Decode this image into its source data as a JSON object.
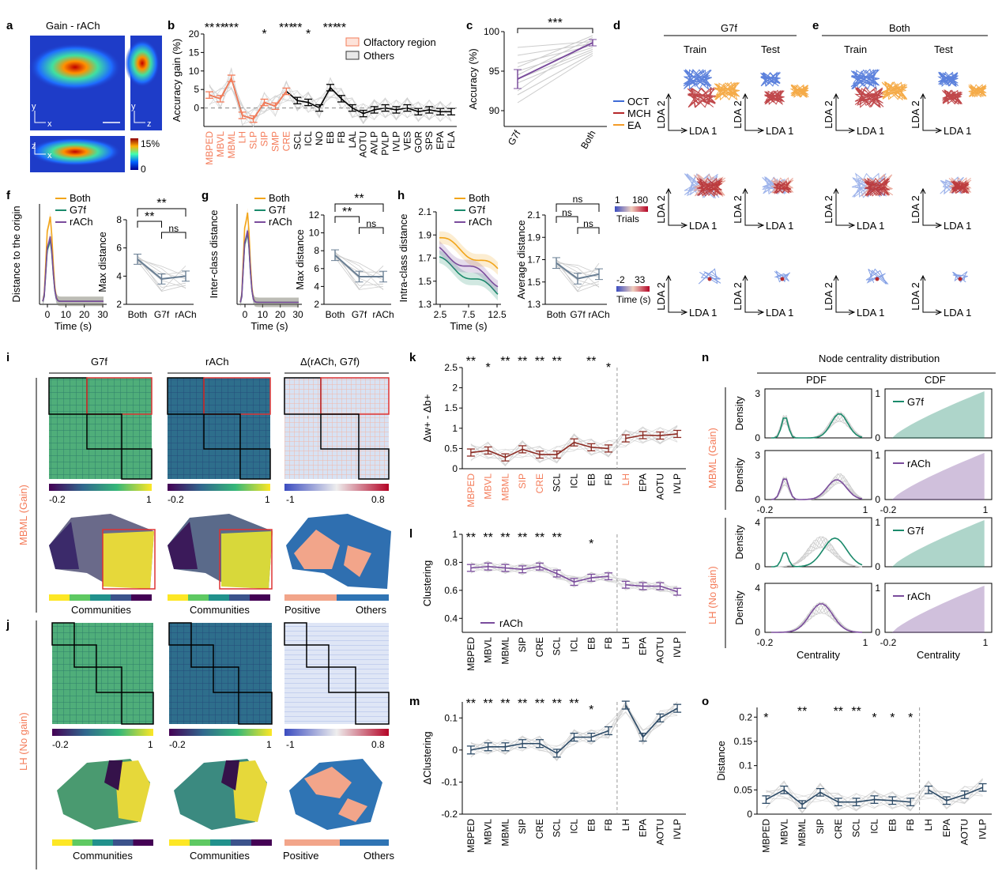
{
  "colors": {
    "orange": "#f47c5a",
    "black": "#000000",
    "green": "#1b8a6b",
    "purple": "#7a4c9c",
    "yellow": "#f2a51a",
    "brown": "#8b2a22",
    "navy": "#2c4a66",
    "oct": "#3f6bd6",
    "mch": "#b5282b",
    "ea": "#f39c28"
  },
  "panels": {
    "a": "a",
    "b": "b",
    "c": "c",
    "d": "d",
    "e": "e",
    "f": "f",
    "g": "g",
    "h": "h",
    "i": "i",
    "j": "j",
    "k": "k",
    "l": "l",
    "m": "m",
    "n": "n",
    "o": "o"
  },
  "panel_a": {
    "title": "Gain - rACh",
    "ax1_y": "y",
    "ax1_x": "x",
    "ax2_y": "y",
    "ax2_x": "z",
    "ax3_y": "z",
    "ax3_x": "x",
    "cbar_max": "15%",
    "cbar_min": "0"
  },
  "panel_d": {
    "title": "G7f",
    "col1": "Train",
    "col2": "Test",
    "xl": "LDA 1",
    "yl": "LDA 2",
    "legend": [
      "OCT",
      "MCH",
      "EA"
    ],
    "trials_min": "1",
    "trials_max": "180",
    "trials_label": "Trials",
    "time_min": "-2",
    "time_max": "33",
    "time_label": "Time (s)"
  },
  "panel_e": {
    "title": "Both",
    "col1": "Train",
    "col2": "Test"
  },
  "panel_i": {
    "cols": [
      "G7f",
      "rACh",
      "Δ(rACh, G7f)"
    ],
    "side_label": "MBML (Gain)",
    "cb1": [
      "-0.2",
      "1"
    ],
    "cb3": [
      "-1",
      "0.8"
    ],
    "communities": "Communities",
    "positive": "Positive",
    "others": "Others"
  },
  "panel_j": {
    "side_label": "LH (No gain)"
  },
  "panel_n": {
    "title": "Node centrality distribution",
    "pdf": "PDF",
    "cdf": "CDF",
    "density": "Density",
    "centrality": "Centrality",
    "leg1": "G7f",
    "leg2": "rACh",
    "side1": "MBML (Gain)",
    "side2": "LH (No gain)",
    "x_ticks": [
      "-0.2",
      "1"
    ]
  },
  "chart_data": [
    {
      "id": "b",
      "type": "line",
      "ylabel": "Accuracy gain (%)",
      "ylim": [
        -5,
        20
      ],
      "yticks": [
        0,
        5,
        10,
        15,
        20
      ],
      "categories": [
        "MBPED",
        "MBVL",
        "MBML",
        "LH",
        "SLP",
        "SIP",
        "SMP",
        "CRE",
        "SCL",
        "ICL",
        "NO",
        "EB",
        "FB",
        "LAL",
        "AOTU",
        "AVLP",
        "PVLP",
        "IVLP",
        "VES",
        "GOR",
        "SPS",
        "EPA",
        "FLA"
      ],
      "olfactory": [
        true,
        true,
        true,
        true,
        true,
        true,
        true,
        true,
        false,
        false,
        false,
        false,
        false,
        false,
        false,
        false,
        false,
        false,
        false,
        false,
        false,
        false,
        false
      ],
      "values": [
        3.5,
        2.5,
        8,
        -2,
        -3,
        1.5,
        0.5,
        4.5,
        2,
        1.5,
        0,
        5.5,
        2.5,
        0,
        -1.5,
        -0.5,
        0,
        -0.5,
        0,
        -1,
        -0.5,
        -1,
        -1
      ],
      "sig": [
        "**",
        "**",
        "***",
        "",
        "",
        "*",
        "",
        "***",
        "**",
        "*",
        "",
        "***",
        "**",
        "",
        "",
        "",
        "",
        "",
        "",
        "",
        "",
        "",
        ""
      ],
      "legend": [
        "Olfactory region",
        "Others"
      ]
    },
    {
      "id": "c",
      "type": "line",
      "ylabel": "Accuracy (%)",
      "ylim": [
        88,
        100
      ],
      "yticks": [
        90,
        95,
        100
      ],
      "categories": [
        "G7f",
        "Both"
      ],
      "values": [
        94,
        98.6
      ],
      "sig": "***"
    },
    {
      "id": "f",
      "type": "line",
      "ylabel": "Distance to the origin",
      "xlabel": "Time (s)",
      "xticks": [
        0,
        10,
        20,
        30
      ],
      "series": [
        "Both",
        "G7f",
        "rACh"
      ],
      "max_ylabel": "Max distance",
      "max_ylim": [
        2,
        8
      ],
      "max_yticks": [
        2,
        4,
        6,
        8
      ],
      "max_categories": [
        "Both",
        "G7f",
        "rACh"
      ],
      "max_values": [
        5.2,
        3.8,
        4.0
      ],
      "max_sig": [
        "**",
        "**",
        "ns"
      ]
    },
    {
      "id": "g",
      "type": "line",
      "ylabel": "Inter-class distance",
      "xlabel": "Time (s)",
      "xticks": [
        0,
        10,
        20,
        30
      ],
      "series": [
        "Both",
        "G7f",
        "rACh"
      ],
      "max_ylabel": "Max distance",
      "max_ylim": [
        2,
        12
      ],
      "max_yticks": [
        2,
        4,
        6,
        8,
        10,
        12
      ],
      "max_categories": [
        "Both",
        "G7f",
        "rACh"
      ],
      "max_values": [
        7.5,
        5.1,
        5.1
      ],
      "max_sig": [
        "**",
        "**",
        "ns"
      ]
    },
    {
      "id": "h",
      "type": "line",
      "ylabel": "Intra-class distance",
      "xlabel": "Time (s)",
      "xticks": [
        2.5,
        7.5,
        12.5
      ],
      "yticks": [
        1.3,
        1.5,
        1.7,
        1.9,
        2.1
      ],
      "series": [
        "Both",
        "G7f",
        "rACh"
      ],
      "avg_ylabel": "Average distance",
      "avg_yticks": [
        1.3,
        1.5,
        1.7,
        1.9,
        2.1
      ],
      "avg_categories": [
        "Both",
        "G7f",
        "rACh"
      ],
      "avg_values": [
        1.67,
        1.53,
        1.57
      ],
      "avg_sig": [
        "ns",
        "ns",
        "ns"
      ]
    },
    {
      "id": "k",
      "type": "line",
      "ylabel": "Δw+ - Δb+",
      "ylim": [
        0,
        2.5
      ],
      "yticks": [
        0,
        0.5,
        1,
        1.5,
        2,
        2.5
      ],
      "categories": [
        "MBPED",
        "MBVL",
        "MBML",
        "SIP",
        "CRE",
        "SCL",
        "ICL",
        "EB",
        "FB",
        "LH",
        "EPA",
        "AOTU",
        "IVLP"
      ],
      "olfactory": [
        true,
        true,
        true,
        true,
        true,
        false,
        false,
        false,
        false,
        true,
        false,
        false,
        false
      ],
      "values": [
        0.4,
        0.45,
        0.28,
        0.48,
        0.35,
        0.35,
        0.65,
        0.53,
        0.5,
        0.75,
        0.83,
        0.82,
        0.86
      ],
      "sig": [
        "**",
        "*",
        "**",
        "**",
        "**",
        "**",
        "",
        "**",
        "*",
        "",
        "",
        "",
        ""
      ]
    },
    {
      "id": "l",
      "type": "line",
      "ylabel": "Clustering",
      "ylim": [
        0.3,
        1
      ],
      "yticks": [
        0.4,
        0.6,
        0.8,
        1
      ],
      "legend": "rACh",
      "categories": [
        "MBPED",
        "MBVL",
        "MBML",
        "SIP",
        "CRE",
        "SCL",
        "ICL",
        "EB",
        "FB",
        "LH",
        "EPA",
        "AOTU",
        "IVLP"
      ],
      "values": [
        0.76,
        0.77,
        0.76,
        0.75,
        0.77,
        0.72,
        0.66,
        0.69,
        0.7,
        0.64,
        0.63,
        0.63,
        0.59
      ],
      "sig": [
        "**",
        "**",
        "**",
        "**",
        "**",
        "**",
        "",
        "*",
        "",
        "",
        "",
        "",
        ""
      ]
    },
    {
      "id": "m",
      "type": "line",
      "ylabel": "ΔClustering",
      "ylim": [
        -0.2,
        0.15
      ],
      "yticks": [
        -0.2,
        -0.1,
        0,
        0.1
      ],
      "categories": [
        "MBPED",
        "MBVL",
        "MBML",
        "SIP",
        "CRE",
        "SCL",
        "ICL",
        "EB",
        "FB",
        "LH",
        "EPA",
        "AOTU",
        "IVLP"
      ],
      "values": [
        0.0,
        0.01,
        0.01,
        0.02,
        0.02,
        -0.01,
        0.04,
        0.04,
        0.06,
        0.14,
        0.04,
        0.1,
        0.13
      ],
      "sig": [
        "**",
        "**",
        "**",
        "**",
        "**",
        "**",
        "**",
        "*",
        "",
        "",
        "",
        "",
        ""
      ]
    },
    {
      "id": "o",
      "type": "line",
      "ylabel": "Distance",
      "ylim": [
        0,
        0.22
      ],
      "yticks": [
        0,
        0.05,
        0.1,
        0.15,
        0.2
      ],
      "categories": [
        "MBPED",
        "MBVL",
        "MBML",
        "SIP",
        "CRE",
        "SCL",
        "ICL",
        "EB",
        "FB",
        "LH",
        "EPA",
        "AOTU",
        "IVLP"
      ],
      "values": [
        0.03,
        0.05,
        0.02,
        0.045,
        0.025,
        0.025,
        0.03,
        0.028,
        0.025,
        0.05,
        0.028,
        0.04,
        0.055
      ],
      "sig": [
        "*",
        "",
        "**",
        "",
        "**",
        "**",
        "*",
        "*",
        "*",
        "",
        "",
        "",
        ""
      ]
    }
  ]
}
